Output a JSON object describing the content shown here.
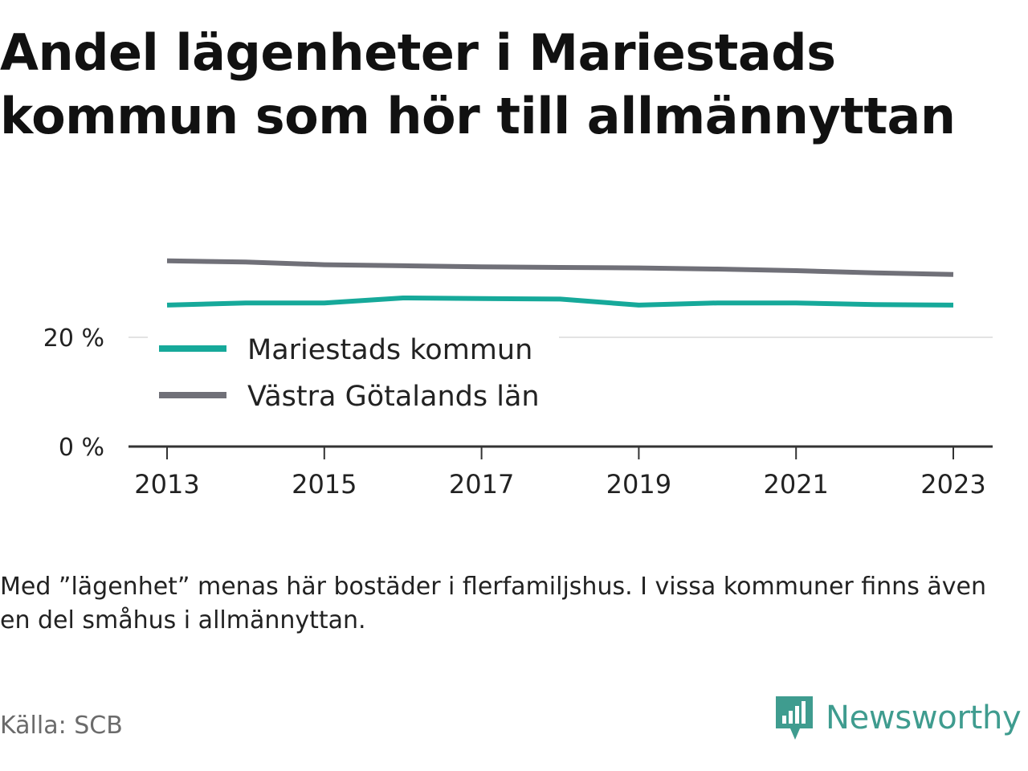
{
  "title": "Andel lägenheter i Mariestads kommun som hör till allmännyttan",
  "note": "Med ”lägenhet” menas här bostäder i flerfamiljshus. I vissa kommuner finns även en del småhus i allmännyttan.",
  "source": "Källa: SCB",
  "brand": "Newsworthy",
  "chart_data": {
    "type": "line",
    "title": "Andel lägenheter i Mariestads kommun som hör till allmännyttan",
    "xlabel": "",
    "ylabel": "",
    "x": [
      2013,
      2014,
      2015,
      2016,
      2017,
      2018,
      2019,
      2020,
      2021,
      2022,
      2023
    ],
    "x_ticks": [
      "2013",
      "2015",
      "2017",
      "2019",
      "2021",
      "2023"
    ],
    "y_ticks": [
      "0 %",
      "20 %"
    ],
    "y_tick_values": [
      0,
      20
    ],
    "ylim": [
      0,
      40
    ],
    "grid": "horizontal",
    "legend": "inside, bottom-left",
    "series": [
      {
        "name": "Mariestads kommun",
        "color": "#16a99a",
        "values": [
          25.9,
          26.3,
          26.3,
          27.2,
          27.1,
          27.0,
          25.9,
          26.3,
          26.3,
          26.0,
          25.9
        ]
      },
      {
        "name": "Västra Götalands län",
        "color": "#707078",
        "values": [
          34.0,
          33.8,
          33.3,
          33.1,
          32.9,
          32.8,
          32.7,
          32.5,
          32.2,
          31.8,
          31.5
        ]
      }
    ]
  }
}
